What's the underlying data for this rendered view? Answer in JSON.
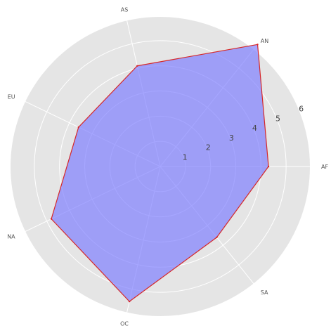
{
  "chart_data": {
    "type": "radar",
    "categories": [
      "AF",
      "AN",
      "AS",
      "EU",
      "NA",
      "OC",
      "SA"
    ],
    "angles_deg": [
      0,
      51.43,
      102.86,
      154.29,
      205.71,
      257.14,
      308.57
    ],
    "values": [
      4.3,
      6.2,
      4.1,
      3.6,
      4.8,
      5.5,
      3.6
    ],
    "rlim": [
      0,
      6
    ],
    "r_ticks": [
      1,
      2,
      3,
      4,
      5,
      6
    ],
    "grid": true,
    "style": {
      "background": "#e5e5e5",
      "grid_color": "#ffffff",
      "fill_color": "#8080ff",
      "fill_opacity": 0.7,
      "line_color": "#d62728"
    }
  }
}
